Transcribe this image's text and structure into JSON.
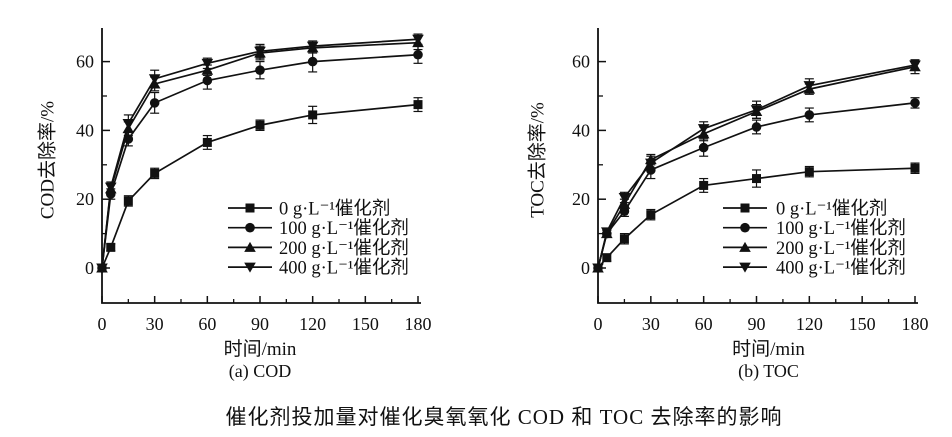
{
  "figure": {
    "caption": "催化剂投加量对催化臭氧氧化 COD 和 TOC 去除率的影响",
    "background_color": "#ffffff",
    "line_color": "#111111"
  },
  "chart_data": [
    {
      "type": "line",
      "title": "(a) COD",
      "xlabel": "时间/min",
      "ylabel": "COD去除率/%",
      "x": [
        0,
        5,
        15,
        30,
        60,
        90,
        120,
        180
      ],
      "xticks": [
        0,
        30,
        60,
        90,
        120,
        150,
        180
      ],
      "yticks": [
        0,
        20,
        40,
        60
      ],
      "xlim": [
        0,
        180
      ],
      "ylim": [
        -10,
        70
      ],
      "grid": false,
      "legend_position": "inside lower right",
      "series": [
        {
          "name": "0 g·L⁻¹催化剂",
          "marker": "square",
          "values": [
            0,
            6,
            19.5,
            27.5,
            36.5,
            41.5,
            44.5,
            47.5
          ],
          "errors": [
            0,
            1,
            1.5,
            1.5,
            2,
            1.5,
            2.5,
            2
          ]
        },
        {
          "name": "100 g·L⁻¹催化剂",
          "marker": "circle",
          "values": [
            0,
            21.5,
            37.5,
            48,
            54.5,
            57.5,
            60,
            62
          ],
          "errors": [
            0,
            1.5,
            2,
            3,
            2.5,
            2.5,
            3,
            2.5
          ]
        },
        {
          "name": "200 g·L⁻¹催化剂",
          "marker": "triangle-up",
          "values": [
            0,
            23,
            40.5,
            53.5,
            57.5,
            62.5,
            64,
            65.5
          ],
          "errors": [
            0,
            1.5,
            2,
            2,
            1.5,
            2,
            1.5,
            2
          ]
        },
        {
          "name": "400 g·L⁻¹催化剂",
          "marker": "triangle-down",
          "values": [
            0,
            23.5,
            42,
            55,
            59.5,
            63,
            64.5,
            66.5
          ],
          "errors": [
            0,
            1.5,
            2.5,
            2.5,
            1.5,
            2,
            1.5,
            1.5
          ]
        }
      ]
    },
    {
      "type": "line",
      "title": "(b) TOC",
      "xlabel": "时间/min",
      "ylabel": "TOC去除率/%",
      "x": [
        0,
        5,
        15,
        30,
        60,
        90,
        120,
        180
      ],
      "xticks": [
        0,
        30,
        60,
        90,
        120,
        150,
        180
      ],
      "yticks": [
        0,
        20,
        40,
        60
      ],
      "xlim": [
        0,
        180
      ],
      "ylim": [
        -10,
        70
      ],
      "grid": false,
      "legend_position": "inside lower right",
      "series": [
        {
          "name": "0 g·L⁻¹催化剂",
          "marker": "square",
          "values": [
            0,
            3,
            8.5,
            15.5,
            24,
            26,
            28,
            29
          ],
          "errors": [
            0,
            1,
            1.5,
            1.5,
            2,
            2.5,
            1.5,
            1.5
          ]
        },
        {
          "name": "100 g·L⁻¹催化剂",
          "marker": "circle",
          "values": [
            0,
            10,
            16.5,
            28.5,
            35,
            41,
            44.5,
            48
          ],
          "errors": [
            0,
            1,
            1.5,
            2.5,
            2.5,
            2,
            2,
            1.5
          ]
        },
        {
          "name": "200 g·L⁻¹催化剂",
          "marker": "triangle-up",
          "values": [
            0,
            10,
            18.5,
            31.5,
            39,
            45.5,
            52,
            58.5
          ],
          "errors": [
            0,
            1,
            1.5,
            1.5,
            2,
            2,
            1.5,
            2
          ]
        },
        {
          "name": "400 g·L⁻¹催化剂",
          "marker": "triangle-down",
          "values": [
            0,
            10.5,
            20.5,
            30.5,
            40.5,
            46,
            53,
            59
          ],
          "errors": [
            0,
            1,
            1.5,
            2,
            2,
            2.5,
            2,
            1.5
          ]
        }
      ]
    }
  ]
}
